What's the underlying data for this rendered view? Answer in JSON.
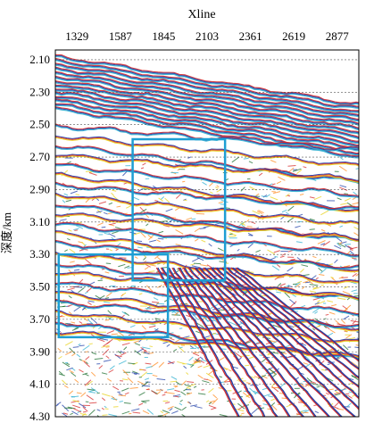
{
  "figure": {
    "title": "Xline",
    "y_axis_label": "深度/km",
    "x_ticks": [
      "1329",
      "1587",
      "1845",
      "2103",
      "2361",
      "2619",
      "2877"
    ],
    "y_ticks": [
      "2.10",
      "2.30",
      "2.50",
      "2.70",
      "2.90",
      "3.10",
      "3.30",
      "3.50",
      "3.70",
      "3.90",
      "4.10",
      "4.30"
    ],
    "x_range": [
      1200,
      3006
    ],
    "y_range": [
      2.04,
      4.3
    ],
    "gridlines": "dashed, horizontal",
    "colors": {
      "highlight_box": "#1e9ed3",
      "wiggle_palette": [
        "#d62a2a",
        "#1f3fa8",
        "#2fb0d0",
        "#e8d21a",
        "#1b6d2d",
        "#ff8a1e"
      ]
    },
    "highlight_boxes": [
      {
        "name": "upper box",
        "x": [
          1660,
          2210
        ],
        "y": [
          2.59,
          3.46
        ]
      },
      {
        "name": "lower box",
        "x": [
          1220,
          1870
        ],
        "y": [
          3.3,
          3.81
        ]
      }
    ]
  }
}
